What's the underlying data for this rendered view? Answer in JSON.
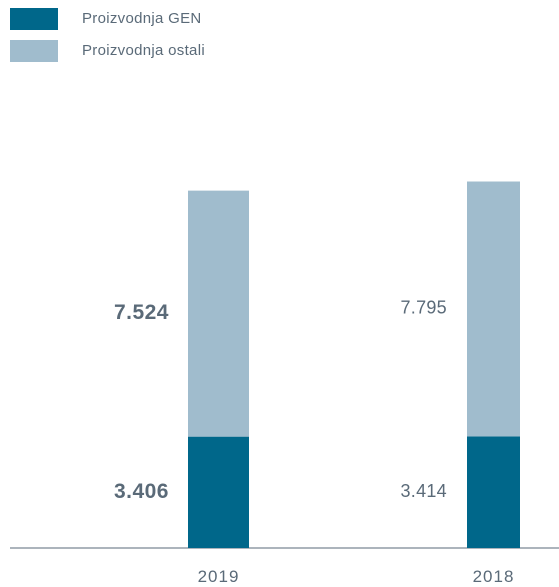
{
  "chart_data": {
    "type": "bar",
    "stacked": true,
    "categories": [
      "2019",
      "2018"
    ],
    "series": [
      {
        "name": "Proizvodnja GEN",
        "values": [
          3.406,
          3.414
        ],
        "value_labels": [
          "3.406",
          "3.414"
        ],
        "color": "#00678a"
      },
      {
        "name": "Proizvodnja ostali",
        "values": [
          7.524,
          7.795
        ],
        "value_labels": [
          "7.524",
          "7.795"
        ],
        "color": "#a0bccd"
      }
    ],
    "ylim": [
      0,
      11.5
    ],
    "grid": false,
    "legend_position": "top-left",
    "highlighted_category": "2019",
    "colors": {
      "axis": "#5a6a78",
      "text": "#5a6a78"
    }
  }
}
